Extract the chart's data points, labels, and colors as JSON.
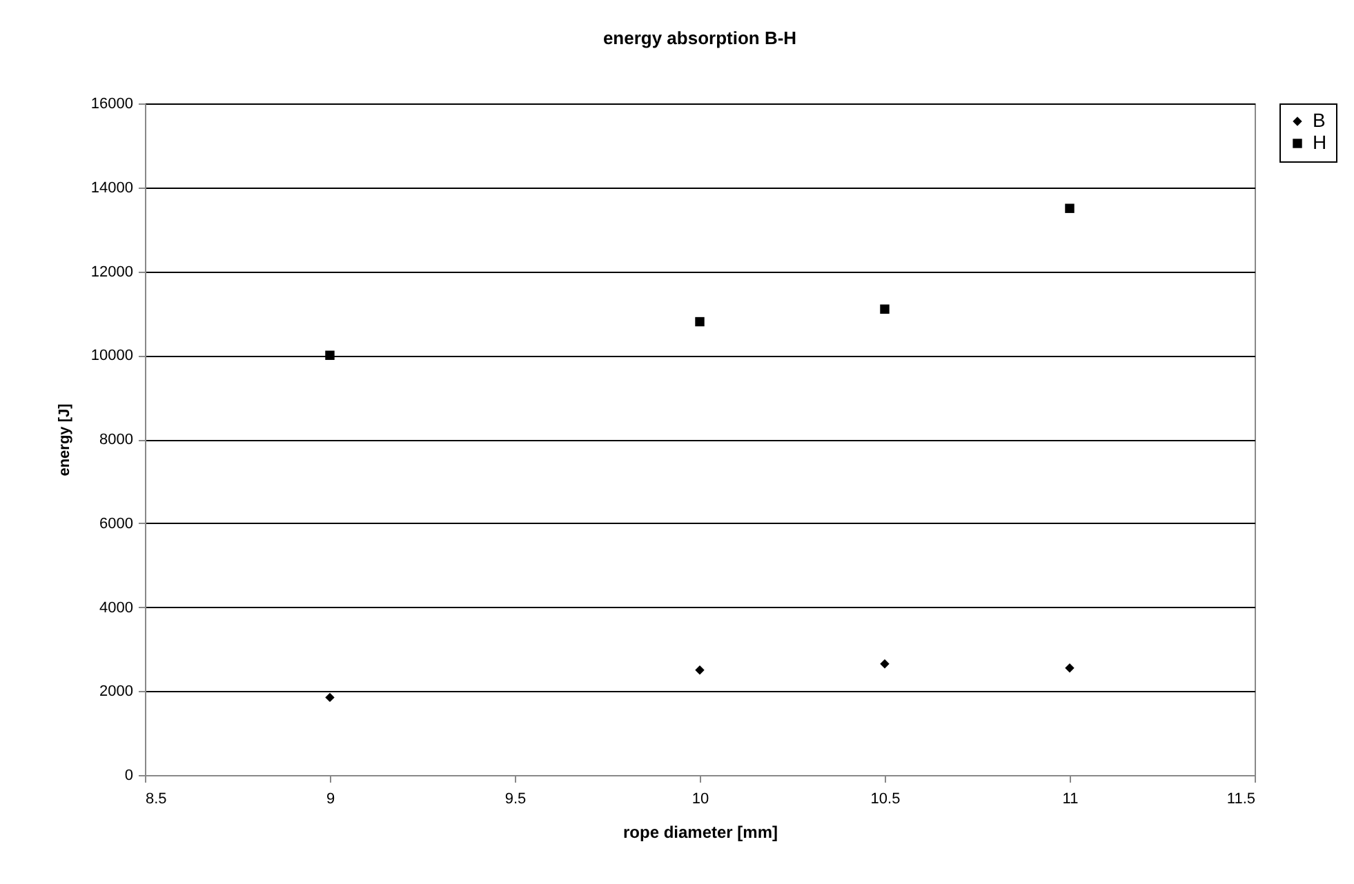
{
  "chart_data": {
    "type": "scatter",
    "title": "energy absorption B-H",
    "xlabel": "rope diameter [mm]",
    "ylabel": "energy [J]",
    "x": [
      9,
      10,
      10.5,
      11
    ],
    "series": [
      {
        "name": "B",
        "color": "#000000",
        "marker": "diamond",
        "values": [
          1850,
          2500,
          2650,
          2550
        ]
      },
      {
        "name": "H",
        "color": "#000000",
        "marker": "square",
        "values": [
          10000,
          10800,
          11100,
          13500
        ]
      }
    ],
    "xlim": [
      8.5,
      11.5
    ],
    "xticks": [
      8.5,
      9,
      9.5,
      10,
      10.5,
      11,
      11.5
    ],
    "ylim": [
      0,
      16000
    ],
    "yticks": [
      0,
      2000,
      4000,
      6000,
      8000,
      10000,
      12000,
      14000,
      16000
    ],
    "grid": "y",
    "legend": "right"
  }
}
